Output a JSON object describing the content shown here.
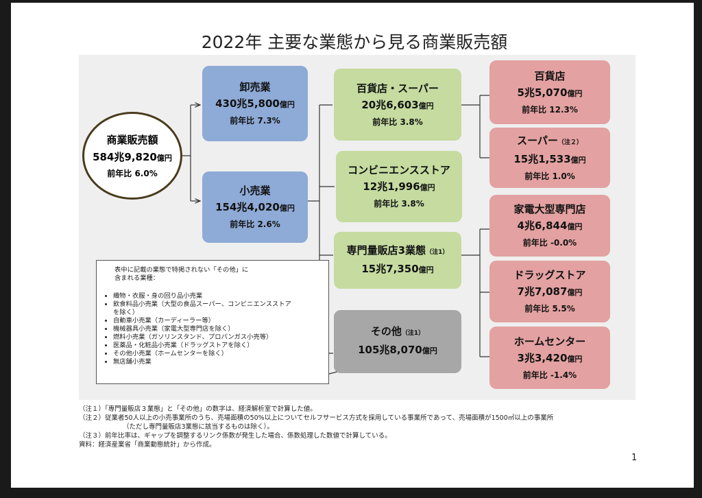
{
  "title": "2022年  主要な業態から見る商業販売額",
  "root": {
    "name": "商業販売額",
    "amount_main": "584兆9,820",
    "amount_unit": "億円",
    "yoy": "前年比  6.0%"
  },
  "wholesale": {
    "name": "卸売業",
    "amount_main": "430兆5,800",
    "amount_unit": "億円",
    "yoy": "前年比 7.3%"
  },
  "retail": {
    "name": "小売業",
    "amount_main": "154兆4,020",
    "amount_unit": "億円",
    "yoy": "前年比 2.6%"
  },
  "mid": [
    {
      "name": "百貨店・スーパー",
      "note": "",
      "amount_main": "20兆6,603",
      "amount_unit": "億円",
      "yoy": "前年比 3.8%"
    },
    {
      "name": "コンビニエンスストア",
      "note": "",
      "amount_main": "12兆1,996",
      "amount_unit": "億円",
      "yoy": "前年比 3.8%"
    },
    {
      "name": "専門量販店3業態",
      "note": "（注1）",
      "amount_main": "15兆7,350",
      "amount_unit": "億円",
      "yoy": ""
    },
    {
      "name": "その他",
      "note": "（注1）",
      "amount_main": "105兆8,070",
      "amount_unit": "億円",
      "yoy": ""
    }
  ],
  "right": [
    {
      "name": "百貨店",
      "note": "",
      "amount_main": "5兆5,070",
      "amount_unit": "億円",
      "yoy": "前年比 12.3%"
    },
    {
      "name": "スーパー",
      "note": "（注２）",
      "amount_main": "15兆1,533",
      "amount_unit": "億円",
      "yoy": "前年比  1.0%"
    },
    {
      "name": "家電大型専門店",
      "note": "",
      "amount_main": "4兆6,844",
      "amount_unit": "億円",
      "yoy": "前年比  -0.0%"
    },
    {
      "name": "ドラッグストア",
      "note": "",
      "amount_main": "7兆7,087",
      "amount_unit": "億円",
      "yoy": "前年比 5.5%"
    },
    {
      "name": "ホームセンター",
      "note": "",
      "amount_main": "3兆3,420",
      "amount_unit": "億円",
      "yoy": "前年比 -1.4%"
    }
  ],
  "other_note": {
    "intro_line1": "表中に記載の業態で特掲されない「その他」に",
    "intro_line2": "含まれる業種：",
    "items": [
      "織物・衣服・身の回り品小売業",
      "飲食料品小売業（大型の食品スーパー、コンビニエンスストア",
      "を除く）",
      "自動車小売業（カーディーラー等）",
      "機械器具小売業（家電大型専門店を除く）",
      "燃料小売業（ガソリンスタンド、プロパンガス小売等）",
      "医薬品・化粧品小売業（ドラッグストアを除く）",
      "その他小売業（ホームセンターを除く）",
      "無店舗小売業"
    ]
  },
  "footnotes": {
    "n1": "（注１）「専門量販店３業態」と「その他」の数字は、経済解析室で計算した値。",
    "n2a": "（注２）従業者50人以上の小売事業所のうち、売場面積の50%以上についてセルフサービス方式を採用している事業所であって、売場面積が1500㎡以上の事業所",
    "n2b": "（ただし専門量販店3業態に該当するものは除く）。",
    "n3": "（注３）前年比率は、ギャップを調整するリンク係数が発生した場合、係数処理した数値で計算している。",
    "src": "資料：経済産業省「商業動態統計」から作成。"
  },
  "page_number": "1",
  "colors": {
    "wholesale_retail": "#8eaad6",
    "mid": "#c5dba0",
    "other": "#a7a7a7",
    "right": "#e3a1a1",
    "circle_border": "#4a3a1c"
  }
}
